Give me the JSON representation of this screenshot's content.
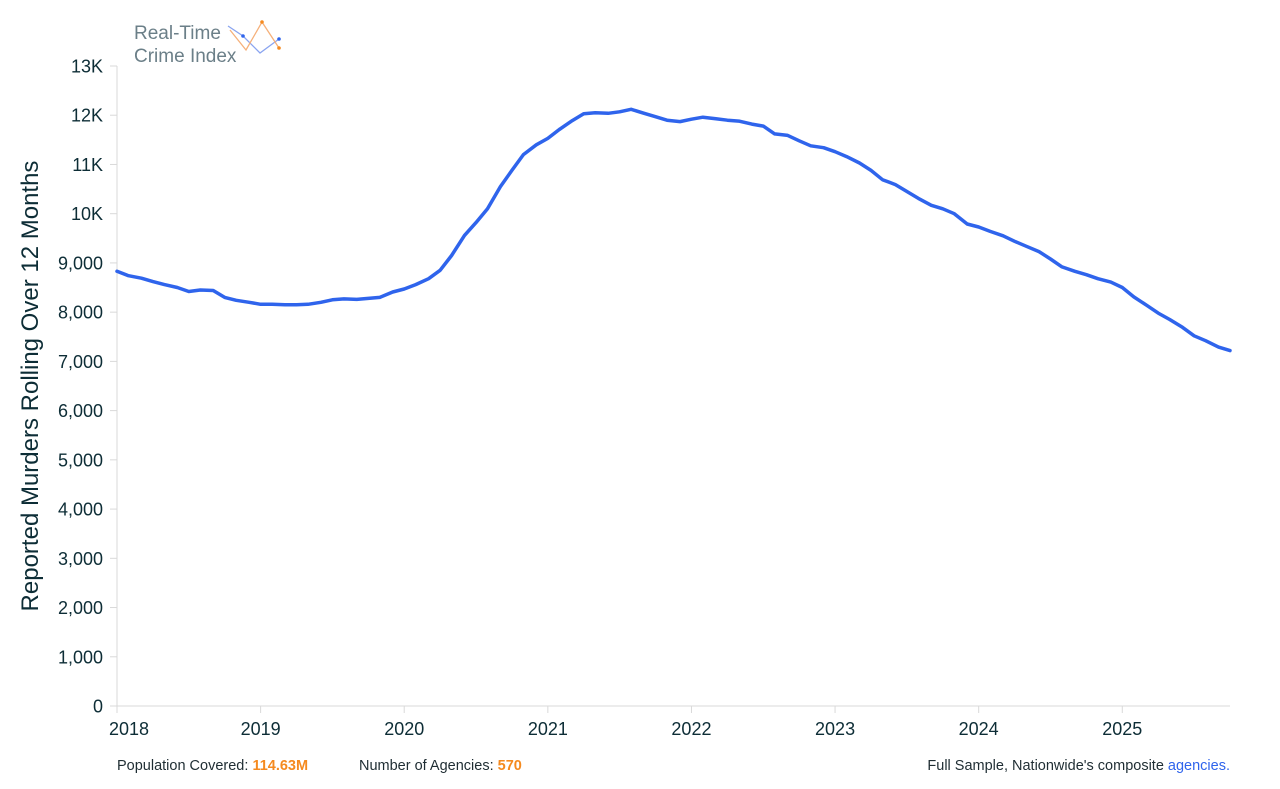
{
  "logo": {
    "line1": "Real-Time",
    "line2": "Crime Index"
  },
  "footer": {
    "population_label": "Population Covered:",
    "population_value": "114.63M",
    "agencies_label": "Number of Agencies:",
    "agencies_value": "570",
    "sample_text": "Full Sample, Nationwide's composite",
    "agencies_link": "agencies."
  },
  "colors": {
    "line": "#2f64ec",
    "accent": "#f58a1f",
    "axis": "#d9d9d9",
    "text": "#0d2d36"
  },
  "chart_data": {
    "type": "line",
    "ylabel": "Reported Murders Rolling Over 12 Months",
    "xlim": [
      2018.0,
      2025.75
    ],
    "ylim": [
      0,
      13000
    ],
    "x_ticks": [
      2018,
      2019,
      2020,
      2021,
      2022,
      2023,
      2024,
      2025
    ],
    "x_tick_labels": [
      "2018",
      "2019",
      "2020",
      "2021",
      "2022",
      "2023",
      "2024",
      "2025"
    ],
    "y_ticks": [
      0,
      1000,
      2000,
      3000,
      4000,
      5000,
      6000,
      7000,
      8000,
      9000,
      10000,
      11000,
      12000,
      13000
    ],
    "y_tick_labels": [
      "0",
      "1,000",
      "2,000",
      "3,000",
      "4,000",
      "5,000",
      "6,000",
      "7,000",
      "8,000",
      "9,000",
      "10K",
      "11K",
      "12K",
      "13K"
    ],
    "grid": false,
    "series": [
      {
        "x": [
          2018.0,
          2018.08,
          2018.17,
          2018.25,
          2018.33,
          2018.42,
          2018.5,
          2018.58,
          2018.67,
          2018.75,
          2018.83,
          2018.92,
          2019.0,
          2019.08,
          2019.17,
          2019.25,
          2019.33,
          2019.42,
          2019.5,
          2019.58,
          2019.67,
          2019.75,
          2019.83,
          2019.92,
          2020.0,
          2020.08,
          2020.17,
          2020.25,
          2020.33,
          2020.42,
          2020.5,
          2020.58,
          2020.67,
          2020.75,
          2020.83,
          2020.92,
          2021.0,
          2021.08,
          2021.17,
          2021.25,
          2021.33,
          2021.42,
          2021.5,
          2021.58,
          2021.67,
          2021.75,
          2021.83,
          2021.92,
          2022.0,
          2022.08,
          2022.17,
          2022.25,
          2022.33,
          2022.42,
          2022.5,
          2022.58,
          2022.67,
          2022.75,
          2022.83,
          2022.92,
          2023.0,
          2023.08,
          2023.17,
          2023.25,
          2023.33,
          2023.42,
          2023.5,
          2023.58,
          2023.67,
          2023.75,
          2023.83,
          2023.92,
          2024.0,
          2024.08,
          2024.17,
          2024.25,
          2024.33,
          2024.42,
          2024.5,
          2024.58,
          2024.67,
          2024.75,
          2024.83,
          2024.92,
          2025.0,
          2025.08,
          2025.17,
          2025.25,
          2025.33,
          2025.42,
          2025.5,
          2025.58,
          2025.67,
          2025.75
        ],
        "y": [
          8830,
          8740,
          8690,
          8620,
          8560,
          8500,
          8420,
          8450,
          8440,
          8300,
          8240,
          8200,
          8160,
          8160,
          8150,
          8150,
          8160,
          8200,
          8250,
          8270,
          8260,
          8280,
          8300,
          8410,
          8470,
          8560,
          8680,
          8850,
          9150,
          9560,
          9820,
          10100,
          10550,
          10880,
          11200,
          11400,
          11530,
          11710,
          11890,
          12030,
          12050,
          12040,
          12070,
          12120,
          12040,
          11970,
          11900,
          11870,
          11920,
          11960,
          11930,
          11900,
          11880,
          11820,
          11780,
          11620,
          11590,
          11480,
          11380,
          11340,
          11260,
          11160,
          11030,
          10880,
          10690,
          10590,
          10450,
          10310,
          10170,
          10100,
          10000,
          9790,
          9730,
          9640,
          9550,
          9440,
          9340,
          9230,
          9080,
          8920,
          8830,
          8760,
          8680,
          8610,
          8500,
          8310,
          8140,
          7980,
          7850,
          7690,
          7520,
          7420,
          7290,
          7220
        ]
      }
    ]
  }
}
